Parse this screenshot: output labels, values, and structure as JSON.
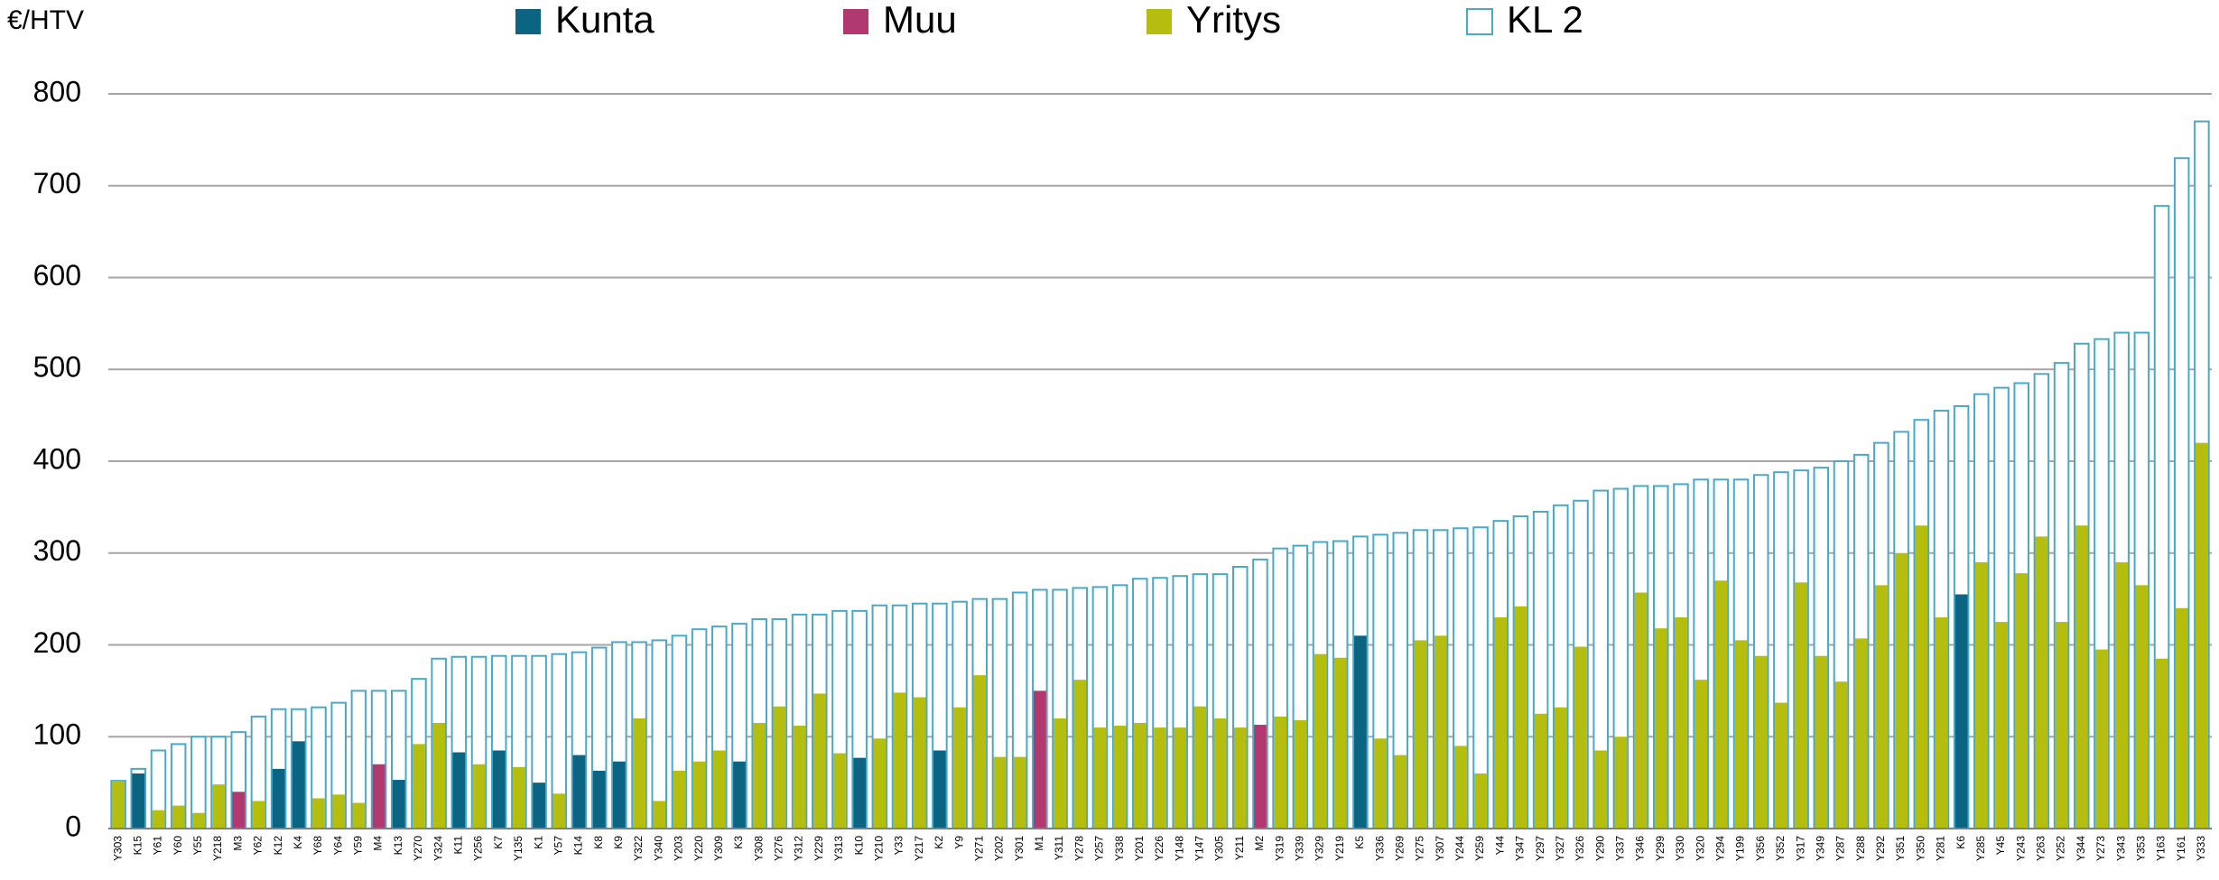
{
  "chart_data": {
    "type": "bar",
    "ylabel": "€/HTV",
    "categories": [
      "Y303",
      "K15",
      "Y61",
      "Y60",
      "Y55",
      "Y218",
      "M3",
      "Y62",
      "K12",
      "K4",
      "Y68",
      "Y64",
      "Y59",
      "M4",
      "K13",
      "Y270",
      "Y324",
      "K11",
      "Y256",
      "K7",
      "Y135",
      "K1",
      "Y57",
      "K14",
      "K8",
      "K9",
      "Y322",
      "Y340",
      "Y203",
      "Y220",
      "Y309",
      "K3",
      "Y308",
      "Y276",
      "Y312",
      "Y229",
      "Y313",
      "K10",
      "Y210",
      "Y33",
      "Y217",
      "K2",
      "Y9",
      "Y271",
      "Y202",
      "Y301",
      "M1",
      "Y311",
      "Y278",
      "Y257",
      "Y338",
      "Y201",
      "Y226",
      "Y148",
      "Y147",
      "Y305",
      "Y211",
      "M2",
      "Y319",
      "Y339",
      "Y329",
      "Y219",
      "K5",
      "Y336",
      "Y269",
      "Y275",
      "Y307",
      "Y244",
      "Y259",
      "Y44",
      "Y347",
      "Y297",
      "Y327",
      "Y326",
      "Y290",
      "Y337",
      "Y346",
      "Y299",
      "Y330",
      "Y320",
      "Y294",
      "Y199",
      "Y356",
      "Y352",
      "Y317",
      "Y349",
      "Y287",
      "Y288",
      "Y292",
      "Y351",
      "Y350",
      "Y281",
      "K6",
      "Y285",
      "Y45",
      "Y243",
      "Y263",
      "Y252",
      "Y344",
      "Y273",
      "Y343",
      "Y353",
      "Y163",
      "Y161",
      "Y333"
    ],
    "series": [
      {
        "name": "KL 2",
        "color": "#4aa8c8",
        "style": "outline",
        "values": [
          52,
          65,
          85,
          92,
          100,
          100,
          105,
          122,
          130,
          130,
          132,
          137,
          150,
          150,
          150,
          163,
          185,
          187,
          187,
          188,
          188,
          188,
          190,
          192,
          197,
          203,
          203,
          205,
          210,
          217,
          220,
          223,
          228,
          228,
          233,
          233,
          237,
          237,
          243,
          243,
          245,
          245,
          247,
          250,
          250,
          257,
          260,
          260,
          262,
          263,
          265,
          272,
          273,
          275,
          277,
          277,
          285,
          293,
          305,
          308,
          312,
          313,
          318,
          320,
          322,
          325,
          325,
          327,
          328,
          335,
          340,
          345,
          352,
          357,
          368,
          370,
          373,
          373,
          375,
          380,
          380,
          380,
          385,
          388,
          390,
          393,
          400,
          407,
          420,
          432,
          445,
          455,
          460,
          473,
          480,
          485,
          495,
          507,
          528,
          533,
          540,
          540,
          678,
          730,
          770
        ]
      },
      {
        "name": "Kunta",
        "color": "#0b6482",
        "style": "solid",
        "values": [
          null,
          60,
          null,
          null,
          null,
          null,
          null,
          null,
          65,
          95,
          null,
          null,
          null,
          null,
          53,
          null,
          null,
          83,
          null,
          85,
          null,
          50,
          null,
          80,
          63,
          73,
          null,
          null,
          null,
          null,
          null,
          73,
          null,
          null,
          null,
          null,
          null,
          77,
          null,
          null,
          null,
          85,
          null,
          null,
          null,
          null,
          null,
          null,
          null,
          null,
          null,
          null,
          null,
          null,
          null,
          null,
          null,
          null,
          null,
          null,
          null,
          null,
          210,
          null,
          null,
          null,
          null,
          null,
          null,
          null,
          null,
          null,
          null,
          null,
          null,
          null,
          null,
          null,
          null,
          null,
          null,
          null,
          null,
          null,
          null,
          null,
          null,
          null,
          null,
          null,
          null,
          null,
          255,
          null,
          null,
          null,
          null,
          null,
          null,
          null,
          null,
          null,
          null,
          null,
          null
        ]
      },
      {
        "name": "Muu",
        "color": "#b03a70",
        "style": "solid",
        "values": [
          null,
          null,
          null,
          null,
          null,
          null,
          40,
          null,
          null,
          null,
          null,
          null,
          null,
          70,
          null,
          null,
          null,
          null,
          null,
          null,
          null,
          null,
          null,
          null,
          null,
          null,
          null,
          null,
          null,
          null,
          null,
          null,
          null,
          null,
          null,
          null,
          null,
          null,
          null,
          null,
          null,
          null,
          null,
          null,
          null,
          null,
          150,
          null,
          null,
          null,
          null,
          null,
          null,
          null,
          null,
          null,
          null,
          113,
          null,
          null,
          null,
          null,
          null,
          null,
          null,
          null,
          null,
          null,
          null,
          null,
          null,
          null,
          null,
          null,
          null,
          null,
          null,
          null,
          null,
          null,
          null,
          null,
          null,
          null,
          null,
          null,
          null,
          null,
          null,
          null,
          null,
          null,
          null,
          null,
          null,
          null,
          null,
          null,
          null,
          null,
          null,
          null,
          null,
          null,
          null
        ]
      },
      {
        "name": "Yritys",
        "color": "#b5bd0e",
        "style": "solid",
        "values": [
          52,
          null,
          20,
          25,
          17,
          48,
          null,
          30,
          null,
          null,
          33,
          37,
          28,
          null,
          null,
          92,
          115,
          null,
          70,
          null,
          67,
          null,
          38,
          null,
          null,
          null,
          120,
          30,
          63,
          73,
          85,
          null,
          115,
          133,
          112,
          147,
          82,
          null,
          98,
          148,
          143,
          null,
          132,
          167,
          78,
          78,
          null,
          120,
          162,
          110,
          112,
          115,
          110,
          110,
          133,
          120,
          110,
          null,
          122,
          118,
          190,
          186,
          null,
          98,
          80,
          205,
          210,
          90,
          60,
          230,
          242,
          125,
          132,
          198,
          85,
          100,
          257,
          218,
          230,
          162,
          270,
          205,
          188,
          137,
          268,
          188,
          160,
          207,
          265,
          300,
          330,
          230,
          null,
          290,
          225,
          278,
          318,
          225,
          330,
          195,
          290,
          265,
          185,
          240,
          420
        ]
      }
    ],
    "legend_order": [
      "Kunta",
      "Muu",
      "Yritys",
      "KL 2"
    ],
    "ylim": [
      0,
      800
    ],
    "yticks": [
      0,
      100,
      200,
      300,
      400,
      500,
      600,
      700,
      800
    ],
    "grid": true
  }
}
